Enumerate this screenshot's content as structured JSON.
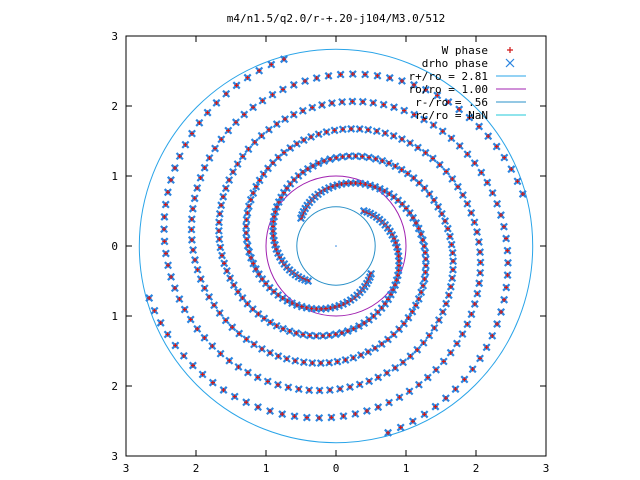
{
  "chart_data": {
    "type": "scatter",
    "title": "m4/n1.5/q2.0/r-+.20-j104/M3.0/512",
    "xlabel": "",
    "ylabel": "",
    "xlim": [
      -3,
      3
    ],
    "ylim": [
      -3,
      3
    ],
    "x_ticks": [
      -3,
      -2,
      -1,
      0,
      1,
      2,
      3
    ],
    "y_ticks": [
      -3,
      -2,
      -1,
      0,
      1,
      2,
      3
    ],
    "x_tick_labels": [
      "3",
      "2",
      "1",
      "0",
      "1",
      "2",
      "3"
    ],
    "y_tick_labels": [
      "3",
      "2",
      "1",
      "0",
      "1",
      "2",
      "3"
    ],
    "grid": false,
    "legend_position": "top-right",
    "spiral": {
      "arms": 4,
      "r_min": 0.56,
      "r_max": 2.81,
      "pitch_turns": 1.35
    },
    "series": [
      {
        "name": "W phase",
        "marker": "plus",
        "color": "#d01818"
      },
      {
        "name": "drho phase",
        "marker": "cross",
        "color": "#2a84e0"
      }
    ],
    "circles": [
      {
        "name": "r+/ro = 2.81",
        "radius": 2.81,
        "color": "#2aa4e8"
      },
      {
        "name": "ro/ro = 1.00",
        "radius": 1.0,
        "color": "#a020b0"
      },
      {
        "name": "r-/ro = .56",
        "radius": 0.56,
        "color": "#2a90c8"
      },
      {
        "name": "rc/ro = NaN",
        "radius": null,
        "color": "#22c8d8"
      }
    ]
  }
}
